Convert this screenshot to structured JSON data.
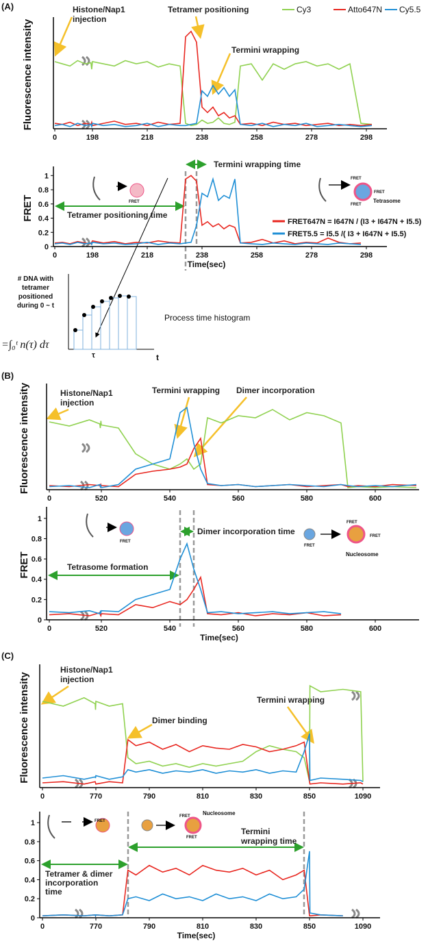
{
  "panels": [
    "(A)",
    "(B)",
    "(C)"
  ],
  "chart_data": [
    {
      "type": "line",
      "y_label": "Fluorescence intensity",
      "legend": "top-right",
      "annotations": [
        "Histone/Nap1",
        "injection",
        "Tetramer positioning",
        "Termini wrapping"
      ],
      "x": [
        0,
        40,
        80,
        120,
        160,
        190,
        194,
        198,
        202,
        206,
        210,
        214,
        218,
        222,
        226,
        230,
        232,
        234,
        236,
        238,
        240,
        242,
        244,
        246,
        248,
        250,
        252,
        256,
        260,
        264,
        268,
        272,
        276,
        280,
        284,
        288,
        292,
        296,
        300
      ],
      "xlim": [
        0,
        302
      ],
      "xticks": [
        0,
        198,
        218,
        238,
        258,
        278,
        298
      ],
      "ylim": [
        0,
        1
      ],
      "series": [
        {
          "name": "Cy3",
          "color": "#8fd14f",
          "values": [
            0.62,
            0.6,
            0.58,
            0.63,
            0.6,
            0.61,
            0.55,
            0.62,
            0.6,
            0.58,
            0.63,
            0.6,
            0.62,
            0.57,
            0.6,
            0.58,
            0.05,
            0.03,
            0.04,
            0.08,
            0.05,
            0.06,
            0.1,
            0.05,
            0.04,
            0.06,
            0.58,
            0.6,
            0.45,
            0.6,
            0.55,
            0.6,
            0.62,
            0.58,
            0.6,
            0.55,
            0.6,
            0.05,
            0.04
          ]
        },
        {
          "name": "Atto647N",
          "color": "#e8261f",
          "values": [
            0.05,
            0.04,
            0.06,
            0.03,
            0.05,
            0.04,
            0.06,
            0.03,
            0.05,
            0.07,
            0.04,
            0.05,
            0.03,
            0.06,
            0.04,
            0.05,
            0.85,
            0.9,
            0.8,
            0.2,
            0.15,
            0.2,
            0.12,
            0.15,
            0.1,
            0.12,
            0.04,
            0.05,
            0.03,
            0.06,
            0.04,
            0.05,
            0.03,
            0.04,
            0.05,
            0.03,
            0.04,
            0.03,
            0.04
          ]
        },
        {
          "name": "Cy5.5",
          "color": "#1f8fd6",
          "values": [
            0.03,
            0.04,
            0.02,
            0.05,
            0.03,
            0.04,
            0.02,
            0.05,
            0.03,
            0.04,
            0.02,
            0.03,
            0.05,
            0.02,
            0.04,
            0.03,
            0.03,
            0.04,
            0.05,
            0.35,
            0.3,
            0.4,
            0.32,
            0.38,
            0.3,
            0.36,
            0.04,
            0.03,
            0.05,
            0.02,
            0.04,
            0.03,
            0.05,
            0.02,
            0.03,
            0.04,
            0.03,
            0.02,
            0.03
          ]
        }
      ]
    },
    {
      "type": "line",
      "y_label": "FRET",
      "x_label": "Time(sec)",
      "legend": "center-right",
      "annotations": [
        "Termini wrapping time",
        "Tetramer positioning time",
        "FRET",
        "FRET",
        "FRET",
        "FRET",
        "Tetrasome"
      ],
      "x": [
        0,
        40,
        80,
        120,
        160,
        190,
        194,
        198,
        202,
        206,
        210,
        214,
        218,
        222,
        226,
        230,
        232,
        234,
        236,
        238,
        240,
        242,
        244,
        246,
        248,
        250,
        252,
        256,
        260,
        264,
        268,
        272,
        276,
        280,
        284,
        288,
        292,
        296,
        300
      ],
      "xlim": [
        0,
        302
      ],
      "xticks": [
        0,
        198,
        218,
        238,
        258,
        278,
        298
      ],
      "ylim": [
        0,
        1.08
      ],
      "yticks": [
        0,
        0.2,
        0.4,
        0.6,
        0.8,
        1
      ],
      "series": [
        {
          "name": "FRET647N = I647N / (I3 + I647N + I5.5)",
          "color": "#e8261f",
          "values": [
            0.05,
            0.06,
            0.04,
            0.07,
            0.05,
            0.04,
            0.06,
            0.08,
            0.05,
            0.07,
            0.04,
            0.06,
            0.05,
            0.08,
            0.06,
            0.05,
            0.95,
            1.0,
            0.92,
            0.3,
            0.35,
            0.28,
            0.32,
            0.25,
            0.3,
            0.27,
            0.05,
            0.06,
            0.1,
            0.05,
            0.08,
            0.04,
            0.06,
            0.05,
            0.12,
            0.06,
            0.04,
            0.05,
            null
          ]
        },
        {
          "name": "FRET5.5 = I5.5 /( I3 + I647N + I5.5)",
          "color": "#1f8fd6",
          "values": [
            0.04,
            0.05,
            0.03,
            0.06,
            0.04,
            0.05,
            0.03,
            0.06,
            0.04,
            0.05,
            0.03,
            0.04,
            0.06,
            0.03,
            0.05,
            0.04,
            0.05,
            0.06,
            0.3,
            0.75,
            0.7,
            0.95,
            0.65,
            0.72,
            0.68,
            0.95,
            0.05,
            0.04,
            0.03,
            0.05,
            0.04,
            0.03,
            0.05,
            0.04,
            0.03,
            0.05,
            0.04,
            0.03,
            null
          ]
        }
      ]
    },
    {
      "type": "line",
      "y_label": "Fluorescence intensity",
      "annotations": [
        "Histone/Nap1",
        "injection",
        "Termini wrapping",
        "Dimer incorporation"
      ],
      "x": [
        0,
        200,
        400,
        505,
        510,
        515,
        520,
        525,
        530,
        535,
        540,
        543,
        545,
        547,
        549,
        551,
        555,
        560,
        565,
        570,
        575,
        580,
        585,
        590,
        592,
        595,
        600,
        605,
        612
      ],
      "xlim": [
        0,
        612
      ],
      "xticks": [
        0,
        520,
        540,
        560,
        580,
        600
      ],
      "ylim": [
        0,
        1
      ],
      "series": [
        {
          "color": "#8fd14f",
          "values": [
            0.66,
            0.62,
            0.68,
            0.64,
            0.6,
            0.67,
            0.63,
            0.6,
            0.35,
            0.25,
            0.2,
            0.25,
            0.3,
            0.2,
            0.25,
            0.7,
            0.65,
            0.72,
            0.7,
            0.78,
            0.68,
            0.75,
            0.72,
            0.65,
            0.02,
            0.03,
            0.02,
            0.03,
            0.02
          ]
        },
        {
          "color": "#e8261f",
          "values": [
            0.04,
            0.03,
            0.05,
            0.04,
            0.03,
            0.05,
            0.04,
            0.03,
            0.15,
            0.18,
            0.2,
            0.22,
            0.25,
            0.4,
            0.5,
            0.05,
            0.04,
            0.05,
            0.03,
            0.04,
            0.05,
            0.03,
            0.04,
            0.05,
            0.03,
            0.04,
            0.03,
            0.05,
            0.04
          ]
        },
        {
          "color": "#1f8fd6",
          "values": [
            0.03,
            0.04,
            0.02,
            0.05,
            0.03,
            0.04,
            0.02,
            0.05,
            0.2,
            0.25,
            0.3,
            0.75,
            0.8,
            0.45,
            0.2,
            0.06,
            0.04,
            0.05,
            0.03,
            0.04,
            0.05,
            0.04,
            0.03,
            0.05,
            0.04,
            0.03,
            0.04,
            0.03,
            0.05
          ]
        }
      ]
    },
    {
      "type": "line",
      "y_label": "FRET",
      "x_label": "Time(sec)",
      "annotations": [
        "Dimer incorporation time",
        "Tetrasome formation",
        "FRET",
        "FRET",
        "FRET",
        "FRET",
        "Nucleosome"
      ],
      "x": [
        0,
        200,
        400,
        505,
        510,
        515,
        520,
        525,
        530,
        535,
        540,
        543,
        545,
        547,
        549,
        551,
        555,
        560,
        565,
        570,
        575,
        580,
        585,
        590,
        592,
        595,
        600,
        605,
        612
      ],
      "xlim": [
        0,
        612
      ],
      "xticks": [
        0,
        520,
        540,
        560,
        580,
        600
      ],
      "ylim": [
        0,
        1.08
      ],
      "yticks": [
        0,
        0.2,
        0.4,
        0.6,
        0.8,
        1
      ],
      "series": [
        {
          "color": "#e8261f",
          "values": [
            0.05,
            0.06,
            0.04,
            0.07,
            0.05,
            0.04,
            0.06,
            0.05,
            0.15,
            0.12,
            0.18,
            0.15,
            0.2,
            0.3,
            0.42,
            0.06,
            0.05,
            0.07,
            0.04,
            0.06,
            0.05,
            0.07,
            0.04,
            0.05,
            null,
            null,
            null,
            null,
            null
          ]
        },
        {
          "color": "#1f8fd6",
          "values": [
            0.08,
            0.07,
            0.09,
            0.06,
            0.08,
            0.07,
            0.09,
            0.08,
            0.2,
            0.25,
            0.3,
            0.6,
            0.75,
            0.5,
            0.3,
            0.07,
            0.08,
            0.06,
            0.07,
            0.08,
            0.06,
            0.07,
            0.08,
            0.06,
            null,
            null,
            null,
            null,
            null
          ]
        }
      ]
    },
    {
      "type": "line",
      "y_label": "Fluorescence intensity",
      "annotations": [
        "Histone/Nap1",
        "injection",
        "Dimer binding",
        "Termini wrapping"
      ],
      "x": [
        0,
        300,
        600,
        760,
        765,
        770,
        775,
        780,
        782,
        785,
        790,
        795,
        800,
        805,
        810,
        815,
        820,
        825,
        830,
        835,
        840,
        845,
        848,
        850,
        852,
        900,
        1000,
        1080,
        1090
      ],
      "xlim": [
        0,
        1095
      ],
      "xticks": [
        0,
        770,
        790,
        810,
        830,
        850,
        1090
      ],
      "ylim": [
        0,
        1
      ],
      "series": [
        {
          "color": "#8fd14f",
          "values": [
            0.72,
            0.68,
            0.75,
            0.7,
            0.65,
            0.72,
            0.68,
            0.7,
            0.25,
            0.2,
            0.22,
            0.18,
            0.2,
            0.17,
            0.2,
            0.18,
            0.2,
            0.22,
            0.3,
            0.35,
            0.32,
            0.3,
            0.25,
            0.05,
            0.85,
            0.8,
            0.82,
            0.8,
            0.05
          ]
        },
        {
          "color": "#e8261f",
          "values": [
            0.04,
            0.05,
            0.03,
            0.05,
            0.04,
            0.03,
            0.05,
            0.04,
            0.4,
            0.35,
            0.38,
            0.32,
            0.36,
            0.3,
            0.35,
            0.33,
            0.32,
            0.36,
            0.34,
            0.3,
            0.32,
            0.35,
            0.38,
            0.05,
            0.03,
            0.04,
            0.03,
            0.04,
            0.03
          ]
        },
        {
          "color": "#1f8fd6",
          "values": [
            0.08,
            0.1,
            0.07,
            0.09,
            0.08,
            0.1,
            0.07,
            0.09,
            0.15,
            0.13,
            0.15,
            0.12,
            0.14,
            0.13,
            0.15,
            0.12,
            0.14,
            0.13,
            0.15,
            0.12,
            0.14,
            0.13,
            0.3,
            0.45,
            0.06,
            0.08,
            0.07,
            0.06,
            0.05
          ]
        }
      ]
    },
    {
      "type": "line",
      "x_label": "Time(sec)",
      "annotations": [
        "Tetramer & dimer",
        "incorporation",
        "time",
        "Termini",
        "wrapping time",
        "FRET",
        "FRET",
        "Nucleosome",
        "FRET"
      ],
      "x": [
        0,
        300,
        600,
        760,
        765,
        770,
        775,
        780,
        782,
        785,
        790,
        795,
        800,
        805,
        810,
        815,
        820,
        825,
        830,
        835,
        840,
        845,
        848,
        850,
        852,
        900,
        1000,
        1080,
        1090
      ],
      "xlim": [
        0,
        1095
      ],
      "xticks": [
        0,
        770,
        790,
        810,
        830,
        850,
        1090
      ],
      "ylim": [
        0,
        1.08
      ],
      "yticks": [
        0,
        0.2,
        0.4,
        0.6,
        0.8,
        1
      ],
      "series": [
        {
          "color": "#e8261f",
          "values": [
            0.02,
            0.03,
            0.02,
            0.03,
            0.02,
            0.03,
            0.02,
            0.03,
            0.5,
            0.45,
            0.55,
            0.48,
            0.52,
            0.45,
            0.55,
            0.5,
            0.48,
            0.52,
            0.45,
            0.5,
            0.4,
            0.45,
            0.5,
            0.02,
            0.02,
            0.03,
            0.02,
            null,
            null
          ]
        },
        {
          "color": "#1f8fd6",
          "values": [
            0.02,
            0.03,
            0.02,
            0.03,
            0.02,
            0.03,
            0.02,
            0.03,
            0.2,
            0.22,
            0.18,
            0.25,
            0.2,
            0.22,
            0.18,
            0.25,
            0.2,
            0.22,
            0.18,
            0.25,
            0.2,
            0.22,
            0.3,
            0.7,
            0.05,
            0.03,
            0.02,
            null,
            null
          ]
        }
      ]
    }
  ],
  "inset": {
    "type": "bar",
    "y_label": [
      "# DNA with",
      "tetramer",
      "positioned",
      "during 0 ~ t"
    ],
    "caption": "Process time histogram",
    "x_label": "t",
    "tau": "τ",
    "formula": "=∫₀ᵗ n(τ) dτ",
    "ylim": [
      0,
      1
    ],
    "color": "#7fb2de",
    "values": [
      0.28,
      0.5,
      0.62,
      0.7,
      0.75,
      0.78,
      0.77
    ]
  }
}
